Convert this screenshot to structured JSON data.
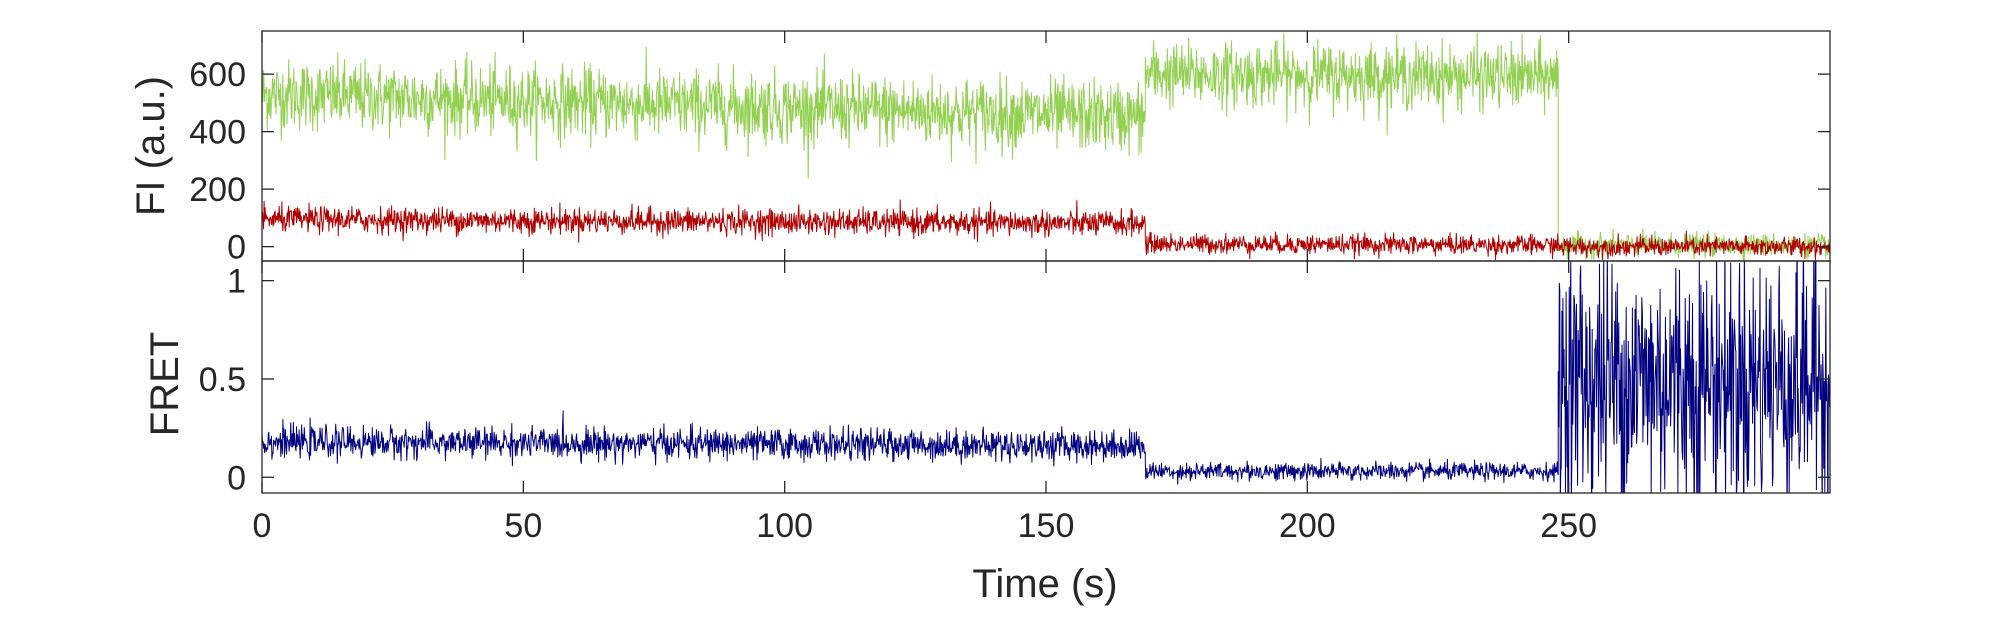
{
  "chart_data": [
    {
      "type": "line",
      "panel": "top",
      "ylabel": "FI (a.u.)",
      "xlim": [
        0,
        300
      ],
      "ylim": [
        -50,
        750
      ],
      "yticks": [
        0,
        200,
        400,
        600
      ],
      "grid": false,
      "series": [
        {
          "color": "#92d050",
          "segments": [
            {
              "x": [
                0,
                169
              ],
              "mean_start": 530,
              "mean_end": 450,
              "noise": 110
            },
            {
              "x": [
                169,
                248
              ],
              "mean_start": 600,
              "mean_end": 590,
              "noise": 100
            },
            {
              "x": [
                248,
                300
              ],
              "mean_start": 5,
              "mean_end": 5,
              "noise": 35
            }
          ]
        },
        {
          "color": "#b00000",
          "segments": [
            {
              "x": [
                0,
                169
              ],
              "mean_start": 95,
              "mean_end": 80,
              "noise": 40
            },
            {
              "x": [
                169,
                248
              ],
              "mean_start": 10,
              "mean_end": 5,
              "noise": 30
            },
            {
              "x": [
                248,
                300
              ],
              "mean_start": 0,
              "mean_end": 0,
              "noise": 30
            }
          ]
        }
      ]
    },
    {
      "type": "line",
      "panel": "bottom",
      "ylabel": "FRET",
      "xlabel": "Time (s)",
      "xlim": [
        0,
        300
      ],
      "ylim": [
        -0.08,
        1.1
      ],
      "yticks": [
        0,
        0.5,
        1
      ],
      "ytick_labels": [
        "0",
        "0.5",
        "1"
      ],
      "xticks": [
        0,
        50,
        100,
        150,
        200,
        250
      ],
      "grid": false,
      "series": [
        {
          "color": "#000080",
          "segments": [
            {
              "x": [
                0,
                169
              ],
              "mean_start": 0.18,
              "mean_end": 0.16,
              "noise": 0.07
            },
            {
              "x": [
                169,
                248
              ],
              "mean_start": 0.03,
              "mean_end": 0.03,
              "noise": 0.04
            },
            {
              "x": [
                248,
                300
              ],
              "mean_start": 0.5,
              "mean_end": 0.5,
              "noise": 0.6
            }
          ]
        }
      ]
    }
  ]
}
